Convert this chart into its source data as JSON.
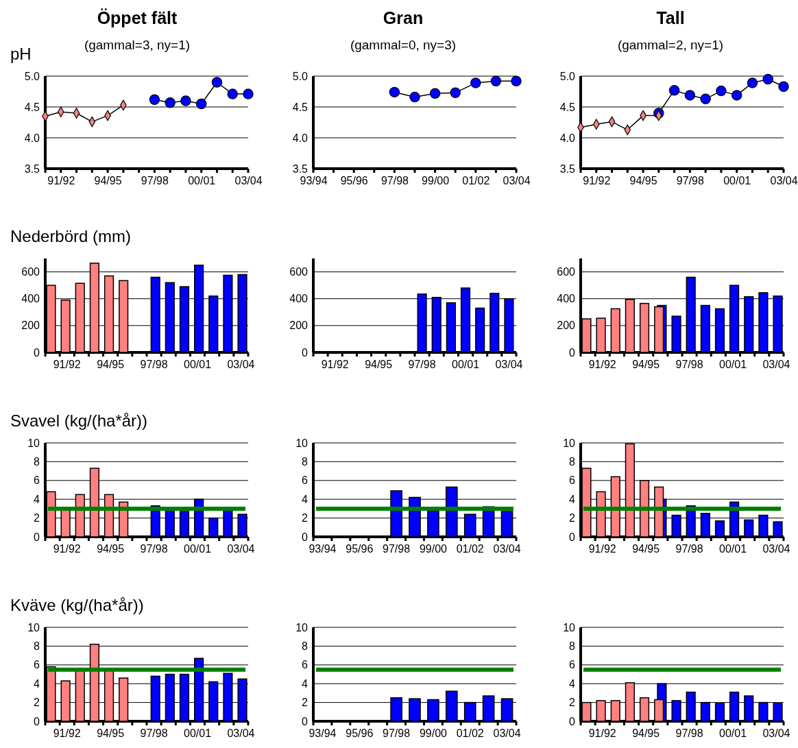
{
  "chart_data": [
    {
      "type": "line",
      "title": "Öppet fält",
      "subtitle": "(gammal=3, ny=1)",
      "ylabel": "pH",
      "categories": [
        null,
        "91/92",
        null,
        null,
        "94/95",
        null,
        null,
        "97/98",
        null,
        null,
        "00/01",
        null,
        null,
        "03/04"
      ],
      "series": [
        {
          "color": "#ff8080",
          "marker": "diamond",
          "values": [
            4.35,
            4.42,
            4.4,
            4.26,
            4.36,
            4.53,
            null,
            null,
            null,
            null,
            null,
            null,
            null,
            null
          ]
        },
        {
          "color": "#0000ff",
          "marker": "circle",
          "values": [
            null,
            null,
            null,
            null,
            null,
            null,
            null,
            4.62,
            4.57,
            4.6,
            4.55,
            4.9,
            4.71,
            4.71
          ]
        }
      ],
      "ylim": [
        3.5,
        5
      ],
      "yticks": [
        {
          "value": 3.5,
          "label": "3.5"
        },
        {
          "value": 4,
          "label": "4.0"
        },
        {
          "value": 4.5,
          "label": "4.5"
        },
        {
          "value": 5,
          "label": "5.0"
        }
      ],
      "grid": "y"
    },
    {
      "type": "line",
      "title": "Gran",
      "subtitle": "(gammal=0, ny=3)",
      "categories": [
        "93/94",
        null,
        "95/96",
        null,
        "97/98",
        null,
        "99/00",
        null,
        "01/02",
        null,
        "03/04"
      ],
      "series": [
        {
          "color": "#0000ff",
          "marker": "circle",
          "values": [
            null,
            null,
            null,
            null,
            4.74,
            4.66,
            4.72,
            4.73,
            4.89,
            4.92,
            4.92
          ]
        }
      ],
      "ylim": [
        3.5,
        5
      ],
      "yticks": [
        {
          "value": 3.5,
          "label": "3.5"
        },
        {
          "value": 4,
          "label": "4.0"
        },
        {
          "value": 4.5,
          "label": "4.5"
        },
        {
          "value": 5,
          "label": "5.0"
        }
      ],
      "grid": "y"
    },
    {
      "type": "line",
      "title": "Tall",
      "subtitle": "(gammal=2, ny=1)",
      "categories": [
        null,
        "91/92",
        null,
        null,
        "94/95",
        null,
        null,
        "97/98",
        null,
        null,
        "00/01",
        null,
        null,
        "03/04"
      ],
      "series": [
        {
          "color": "#ff8080",
          "marker": "diamond",
          "values": [
            4.17,
            4.22,
            4.26,
            4.13,
            4.36,
            4.36,
            null,
            null,
            null,
            null,
            null,
            null,
            null,
            null
          ]
        },
        {
          "color": "#0000ff",
          "marker": "circle",
          "values": [
            null,
            null,
            null,
            null,
            null,
            4.4,
            4.77,
            4.69,
            4.63,
            4.76,
            4.69,
            4.89,
            4.95,
            4.83
          ]
        }
      ],
      "ylim": [
        3.5,
        5
      ],
      "yticks": [
        {
          "value": 3.5,
          "label": "3.5"
        },
        {
          "value": 4,
          "label": "4.0"
        },
        {
          "value": 4.5,
          "label": "4.5"
        },
        {
          "value": 5,
          "label": "5.0"
        }
      ],
      "grid": "y"
    },
    {
      "type": "bar",
      "ylabel": "Nederbörd (mm)",
      "categories": [
        null,
        "91/92",
        null,
        null,
        "94/95",
        null,
        null,
        "97/98",
        null,
        null,
        "00/01",
        null,
        null,
        "03/04"
      ],
      "series": [
        {
          "color": "#ff8080",
          "values": [
            500,
            390,
            515,
            665,
            570,
            535,
            null,
            null,
            null,
            null,
            null,
            null,
            null,
            null
          ]
        },
        {
          "color": "#0000ff",
          "values": [
            null,
            null,
            null,
            null,
            null,
            null,
            0,
            560,
            520,
            490,
            650,
            420,
            575,
            580
          ]
        }
      ],
      "ylim": [
        0,
        700
      ],
      "yticks": [
        0,
        200,
        400,
        600
      ],
      "grid": "y"
    },
    {
      "type": "bar",
      "categories": [
        null,
        "91/92",
        null,
        null,
        "94/95",
        null,
        null,
        "97/98",
        null,
        null,
        "00/01",
        null,
        null,
        "03/04"
      ],
      "series": [
        {
          "color": "#0000ff",
          "values": [
            0,
            0,
            0,
            0,
            0,
            0,
            0,
            435,
            410,
            370,
            480,
            330,
            440,
            400
          ]
        }
      ],
      "ylim": [
        0,
        700
      ],
      "yticks": [
        0,
        200,
        400,
        600
      ],
      "grid": "y"
    },
    {
      "type": "bar",
      "categories": [
        null,
        "91/92",
        null,
        null,
        "94/95",
        null,
        null,
        "97/98",
        null,
        null,
        "00/01",
        null,
        null,
        "03/04"
      ],
      "series": [
        {
          "color": "#ff8080",
          "values": [
            250,
            255,
            325,
            395,
            365,
            340,
            null,
            null,
            null,
            null,
            null,
            null,
            null,
            null
          ]
        },
        {
          "color": "#0000ff",
          "values": [
            null,
            null,
            null,
            null,
            null,
            350,
            270,
            560,
            350,
            325,
            500,
            415,
            445,
            420
          ]
        }
      ],
      "ylim": [
        0,
        700
      ],
      "yticks": [
        0,
        200,
        400,
        600
      ],
      "grid": "y"
    },
    {
      "type": "bar",
      "ylabel": "Svavel (kg/(ha*år))",
      "categories": [
        null,
        "91/92",
        null,
        null,
        "94/95",
        null,
        null,
        "97/98",
        null,
        null,
        "00/01",
        null,
        null,
        "03/04"
      ],
      "series": [
        {
          "color": "#ff8080",
          "values": [
            4.8,
            3.0,
            4.5,
            7.3,
            4.5,
            3.7,
            null,
            null,
            null,
            null,
            null,
            null,
            null,
            null
          ]
        },
        {
          "color": "#0000ff",
          "values": [
            null,
            null,
            null,
            null,
            null,
            null,
            null,
            3.3,
            3.0,
            2.7,
            4.0,
            2.0,
            2.9,
            2.4
          ]
        }
      ],
      "ylim": [
        0,
        10
      ],
      "yticks": [
        0,
        2,
        4,
        6,
        8,
        10
      ],
      "grid": "y",
      "ref_lines": [
        {
          "axis": "y",
          "value": 3,
          "color": "#008000"
        }
      ]
    },
    {
      "type": "bar",
      "categories": [
        "93/94",
        null,
        "95/96",
        null,
        "97/98",
        null,
        "99/00",
        null,
        "01/02",
        null,
        "03/04"
      ],
      "series": [
        {
          "color": "#0000ff",
          "values": [
            null,
            null,
            null,
            null,
            4.9,
            4.2,
            2.8,
            5.3,
            2.4,
            3.2,
            2.7
          ]
        }
      ],
      "ylim": [
        0,
        10
      ],
      "yticks": [
        0,
        2,
        4,
        6,
        8,
        10
      ],
      "grid": "y",
      "ref_lines": [
        {
          "axis": "y",
          "value": 3,
          "color": "#008000"
        }
      ]
    },
    {
      "type": "bar",
      "categories": [
        null,
        "91/92",
        null,
        null,
        "94/95",
        null,
        null,
        "97/98",
        null,
        null,
        "00/01",
        null,
        null,
        "03/04"
      ],
      "series": [
        {
          "color": "#ff8080",
          "values": [
            7.3,
            4.8,
            6.4,
            9.9,
            6.0,
            5.3,
            null,
            null,
            null,
            null,
            null,
            null,
            null,
            null
          ]
        },
        {
          "color": "#0000ff",
          "values": [
            null,
            null,
            null,
            null,
            null,
            4.0,
            2.3,
            3.3,
            2.5,
            1.7,
            3.7,
            1.8,
            2.3,
            1.6
          ]
        }
      ],
      "ylim": [
        0,
        10
      ],
      "yticks": [
        0,
        2,
        4,
        6,
        8,
        10
      ],
      "grid": "y",
      "ref_lines": [
        {
          "axis": "y",
          "value": 3,
          "color": "#008000"
        }
      ]
    },
    {
      "type": "bar",
      "ylabel": "Kväve (kg/(ha*år))",
      "categories": [
        null,
        "91/92",
        null,
        null,
        "94/95",
        null,
        null,
        "97/98",
        null,
        null,
        "00/01",
        null,
        null,
        "03/04"
      ],
      "series": [
        {
          "color": "#ff8080",
          "values": [
            5.8,
            4.3,
            5.5,
            8.2,
            5.5,
            4.6,
            null,
            null,
            null,
            null,
            null,
            null,
            null,
            null
          ]
        },
        {
          "color": "#0000ff",
          "values": [
            null,
            null,
            null,
            null,
            null,
            null,
            null,
            4.8,
            5.0,
            5.0,
            6.7,
            4.2,
            5.1,
            4.5
          ]
        }
      ],
      "ylim": [
        0,
        10
      ],
      "yticks": [
        0,
        2,
        4,
        6,
        8,
        10
      ],
      "grid": "y",
      "ref_lines": [
        {
          "axis": "y",
          "value": 5.5,
          "color": "#008000"
        }
      ]
    },
    {
      "type": "bar",
      "categories": [
        "93/94",
        null,
        "95/96",
        null,
        "97/98",
        null,
        "99/00",
        null,
        "01/02",
        null,
        "03/04"
      ],
      "series": [
        {
          "color": "#0000ff",
          "values": [
            null,
            null,
            null,
            null,
            2.5,
            2.4,
            2.3,
            3.2,
            2.0,
            2.7,
            2.4
          ]
        }
      ],
      "ylim": [
        0,
        10
      ],
      "yticks": [
        0,
        2,
        4,
        6,
        8,
        10
      ],
      "grid": "y",
      "ref_lines": [
        {
          "axis": "y",
          "value": 5.5,
          "color": "#008000"
        }
      ]
    },
    {
      "type": "bar",
      "categories": [
        null,
        "91/92",
        null,
        null,
        "94/95",
        null,
        null,
        "97/98",
        null,
        null,
        "00/01",
        null,
        null,
        "03/04"
      ],
      "series": [
        {
          "color": "#ff8080",
          "values": [
            2.0,
            2.2,
            2.2,
            4.1,
            2.5,
            2.3,
            null,
            null,
            null,
            null,
            null,
            null,
            null,
            null
          ]
        },
        {
          "color": "#0000ff",
          "values": [
            null,
            null,
            null,
            null,
            null,
            4.0,
            2.2,
            3.1,
            2.0,
            1.9,
            3.1,
            2.7,
            2.0,
            1.9
          ]
        }
      ],
      "ylim": [
        0,
        10
      ],
      "yticks": [
        0,
        2,
        4,
        6,
        8,
        10
      ],
      "grid": "y",
      "ref_lines": [
        {
          "axis": "y",
          "value": 5.5,
          "color": "#008000"
        }
      ]
    }
  ]
}
